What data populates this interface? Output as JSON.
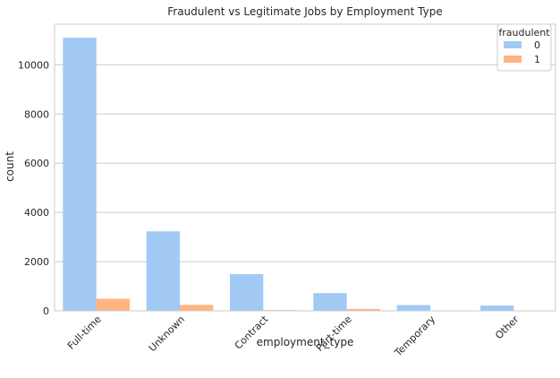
{
  "chart_data": {
    "type": "bar",
    "title": "Fraudulent vs Legitimate Jobs by Employment Type",
    "xlabel": "employment_type",
    "ylabel": "count",
    "ylim": [
      0,
      11650
    ],
    "yticks": [
      0,
      2000,
      4000,
      6000,
      8000,
      10000
    ],
    "grid": "horizontal",
    "legend": {
      "title": "fraudulent",
      "placement": "top-right"
    },
    "categories": [
      "Full-time",
      "Unknown",
      "Contract",
      "Part-time",
      "Temporary",
      "Other"
    ],
    "series": [
      {
        "name": "0",
        "color": "#a1c9f4",
        "values": [
          11100,
          3230,
          1490,
          720,
          235,
          215
        ]
      },
      {
        "name": "1",
        "color": "#ffb482",
        "values": [
          490,
          240,
          30,
          75,
          5,
          15
        ]
      }
    ]
  }
}
